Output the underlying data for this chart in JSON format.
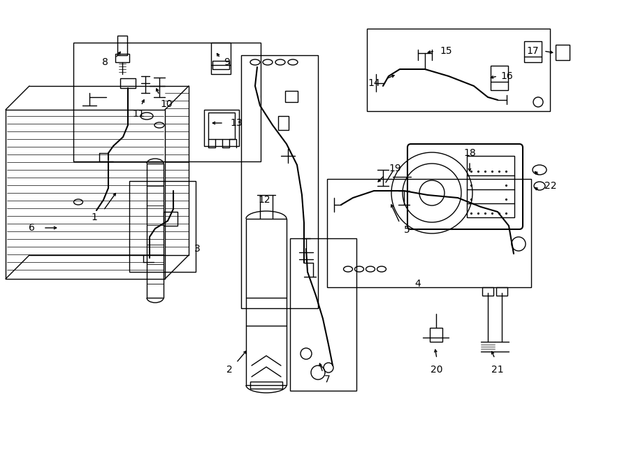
{
  "background": "#ffffff",
  "line_color": "#000000",
  "fig_width": 9.0,
  "fig_height": 6.61,
  "dpi": 100
}
